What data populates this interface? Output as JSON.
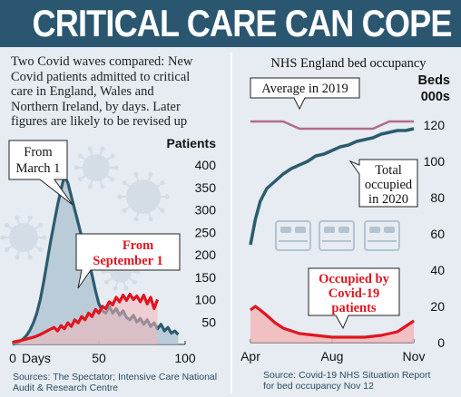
{
  "header": {
    "title": "CRITICAL CARE CAN COPE"
  },
  "colors": {
    "header_bg": "#2a5670",
    "panel_bg": "#e6ecf2",
    "wave1_line": "#2c5b6e",
    "wave1_fill": "#a9c1cf",
    "wave2_line": "#e0151f",
    "occupancy_line": "#2c5b6e",
    "average_line": "#b36b8a",
    "covid_fill": "#f2b5b7"
  },
  "left": {
    "intro_lines": [
      "Two Covid waves compared: New",
      "Covid patients admitted to critical",
      "care in England, Wales and",
      "Northern Ireland, by days. Later",
      "figures are likely to be revised up"
    ],
    "source_lines": [
      "Sources: The Spectator; Intensive Care National",
      "Audit & Research Centre"
    ]
  },
  "right": {
    "title": "NHS England bed occupancy",
    "source_lines": [
      "Source: Covid-19 NHS Situation Report",
      "for bed occupancy Nov 12"
    ]
  },
  "chart_data": [
    {
      "type": "area",
      "ylabel": "Patients",
      "xlabel": "Days",
      "xlim": [
        0,
        100
      ],
      "ylim": [
        0,
        400
      ],
      "x_ticks": [
        "0",
        "50",
        "100"
      ],
      "y_ticks": [
        "0",
        "50",
        "100",
        "150",
        "200",
        "250",
        "300",
        "350",
        "400"
      ],
      "annotations": [
        {
          "text_lines": [
            "From",
            "March 1"
          ],
          "series": "wave1"
        },
        {
          "text_lines": [
            "From",
            "September 1"
          ],
          "series": "wave2"
        }
      ],
      "series": [
        {
          "name": "From March 1",
          "x": [
            0,
            2,
            4,
            6,
            8,
            10,
            12,
            14,
            16,
            18,
            20,
            22,
            24,
            26,
            28,
            30,
            32,
            34,
            36,
            38,
            40,
            42,
            44,
            46,
            48,
            50,
            52,
            54,
            56,
            58,
            60,
            62,
            64,
            66,
            68,
            70,
            72,
            74,
            76,
            78,
            80,
            82,
            84,
            86,
            88,
            90,
            92,
            94,
            96
          ],
          "values": [
            0,
            3,
            6,
            12,
            20,
            32,
            48,
            70,
            100,
            140,
            185,
            230,
            270,
            310,
            345,
            375,
            360,
            330,
            300,
            270,
            240,
            210,
            185,
            155,
            120,
            90,
            75,
            70,
            85,
            70,
            80,
            65,
            75,
            60,
            55,
            65,
            50,
            58,
            45,
            55,
            40,
            48,
            35,
            45,
            30,
            38,
            25,
            30,
            22
          ]
        },
        {
          "name": "From September 1",
          "x": [
            0,
            4,
            8,
            12,
            16,
            20,
            24,
            26,
            28,
            30,
            32,
            34,
            36,
            38,
            40,
            42,
            44,
            46,
            48,
            50,
            52,
            54,
            56,
            58,
            60,
            62,
            64,
            66,
            68,
            70,
            72,
            74,
            76,
            78,
            80,
            82,
            84
          ],
          "values": [
            5,
            8,
            12,
            16,
            22,
            30,
            38,
            30,
            42,
            35,
            48,
            40,
            55,
            48,
            62,
            55,
            70,
            62,
            78,
            70,
            85,
            80,
            95,
            88,
            105,
            95,
            110,
            98,
            112,
            100,
            108,
            95,
            110,
            90,
            105,
            80,
            100
          ]
        }
      ]
    },
    {
      "type": "line",
      "title": "NHS England bed occupancy",
      "ylabel_lines": [
        "Beds",
        "000s"
      ],
      "x_ticks": [
        "Apr",
        "Aug",
        "Nov"
      ],
      "ylim": [
        0,
        130
      ],
      "y_ticks": [
        "0",
        "20",
        "40",
        "60",
        "80",
        "100",
        "120"
      ],
      "annotations": [
        {
          "text": "Average in 2019",
          "series": "average"
        },
        {
          "text_lines": [
            "Total",
            "occupied",
            "in 2020"
          ],
          "series": "total"
        },
        {
          "text_lines": [
            "Occupied by",
            "Covid-19",
            "patients"
          ],
          "series": "covid"
        }
      ],
      "series": [
        {
          "name": "Average in 2019",
          "x": [
            0,
            0.2,
            0.3,
            0.75,
            0.85,
            1.0
          ],
          "values": [
            122,
            122,
            118,
            118,
            122,
            122
          ]
        },
        {
          "name": "Total occupied in 2020",
          "x": [
            0,
            0.03,
            0.06,
            0.1,
            0.15,
            0.2,
            0.25,
            0.3,
            0.35,
            0.4,
            0.45,
            0.5,
            0.55,
            0.6,
            0.65,
            0.7,
            0.75,
            0.8,
            0.85,
            0.9,
            0.95,
            1.0
          ],
          "values": [
            54,
            68,
            78,
            85,
            89,
            93,
            96,
            98,
            100,
            103,
            104,
            106,
            108,
            109,
            111,
            112,
            113,
            115,
            116,
            117,
            117,
            118
          ]
        },
        {
          "name": "Occupied by Covid-19 patients",
          "x": [
            0,
            0.03,
            0.06,
            0.1,
            0.15,
            0.2,
            0.3,
            0.4,
            0.5,
            0.55,
            0.6,
            0.7,
            0.8,
            0.9,
            0.95,
            1.0
          ],
          "values": [
            18,
            20,
            18,
            15,
            11,
            8,
            5,
            4,
            3,
            3,
            3,
            3,
            4,
            6,
            9,
            12
          ]
        }
      ]
    }
  ]
}
